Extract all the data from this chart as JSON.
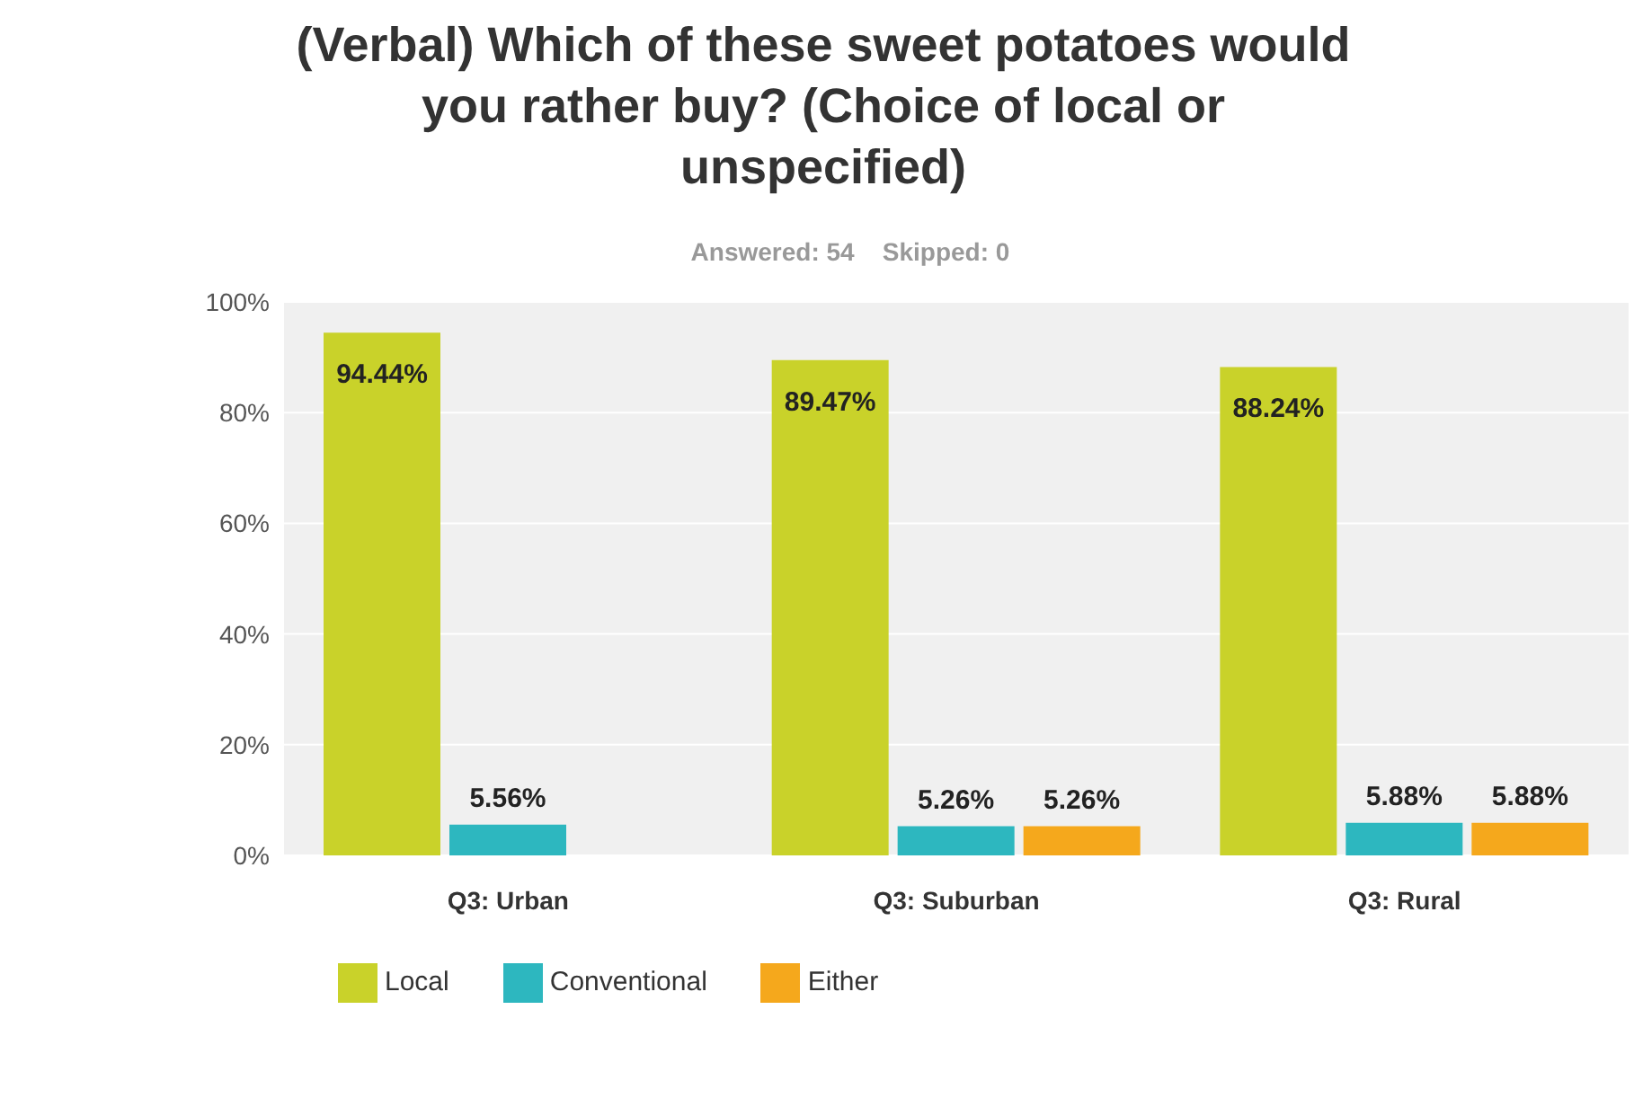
{
  "chart_data": {
    "type": "bar",
    "title": "(Verbal) Which of these sweet potatoes would you rather buy? (Choice of local or unspecified)",
    "subtitle": "Answered: 54    Skipped: 0",
    "categories": [
      "Q3: Urban",
      "Q3: Suburban",
      "Q3: Rural"
    ],
    "series": [
      {
        "name": "Local",
        "color": "#c9d22a",
        "values": [
          94.44,
          89.47,
          88.24
        ],
        "value_labels": [
          "94.44%",
          "89.47%",
          "88.24%"
        ]
      },
      {
        "name": "Conventional",
        "color": "#2db7bf",
        "values": [
          5.56,
          5.26,
          5.88
        ],
        "value_labels": [
          "5.56%",
          "5.26%",
          "5.88%"
        ]
      },
      {
        "name": "Either",
        "color": "#f5a81c",
        "values": [
          null,
          5.26,
          5.88
        ],
        "value_labels": [
          null,
          "5.26%",
          "5.88%"
        ]
      }
    ],
    "ylim": [
      0,
      100
    ],
    "yticks": [
      {
        "value": 0,
        "label": "0%"
      },
      {
        "value": 20,
        "label": "20%"
      },
      {
        "value": 40,
        "label": "40%"
      },
      {
        "value": 60,
        "label": "60%"
      },
      {
        "value": 80,
        "label": "80%"
      },
      {
        "value": 100,
        "label": "100%"
      }
    ],
    "grid": "y",
    "legend": "bottom left"
  }
}
